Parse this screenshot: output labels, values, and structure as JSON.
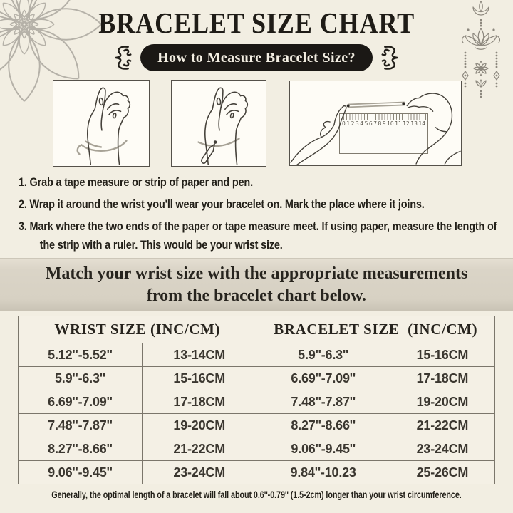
{
  "header": {
    "title": "BRACELET SIZE CHART",
    "badge": "How to Measure Bracelet Size?"
  },
  "measure": {
    "ruler_numbers": [
      "0",
      "1",
      "2",
      "3",
      "4",
      "5",
      "6",
      "7",
      "8",
      "9",
      "10",
      "11",
      "12",
      "13",
      "14"
    ]
  },
  "instructions": {
    "items": [
      "1. Grab a tape measure or strip of paper and pen.",
      "2. Wrap it around the wrist you'll wear your bracelet on. Mark the place where it joins.",
      "3. Mark where the two ends of the paper or tape measure meet. If using paper, measure the length of the strip with a ruler. This would be your wrist size."
    ]
  },
  "banner": {
    "line1": "Match your wrist size with the appropriate measurements",
    "line2": "from the bracelet chart below."
  },
  "size_table": {
    "wrist_header": "WRIST SIZE (INC/CM)",
    "bracelet_header": "BRACELET SIZE  (INC/CM)",
    "rows": [
      [
        "5.12''-5.52''",
        "13-14CM",
        "5.9''-6.3''",
        "15-16CM"
      ],
      [
        "5.9''-6.3''",
        "15-16CM",
        "6.69''-7.09''",
        "17-18CM"
      ],
      [
        "6.69''-7.09''",
        "17-18CM",
        "7.48''-7.87''",
        "19-20CM"
      ],
      [
        "7.48''-7.87''",
        "19-20CM",
        "8.27''-8.66''",
        "21-22CM"
      ],
      [
        "8.27''-8.66''",
        "21-22CM",
        "9.06''-9.45''",
        "23-24CM"
      ],
      [
        "9.06''-9.45''",
        "23-24CM",
        "9.84''-10.23",
        "25-26CM"
      ]
    ]
  },
  "footer": {
    "note": "Generally, the optimal length of a bracelet will fall about 0.6''-0.79'' (1.5-2cm) longer than your wrist circumference."
  },
  "colors": {
    "background": "#f2eee2",
    "ink": "#232019",
    "badge_bg": "#1b1815",
    "badge_text": "#f3eee2",
    "banner_bg": "#d7d1c3",
    "table_line": "#7b766b",
    "ornament_gray": "#8d887e"
  }
}
